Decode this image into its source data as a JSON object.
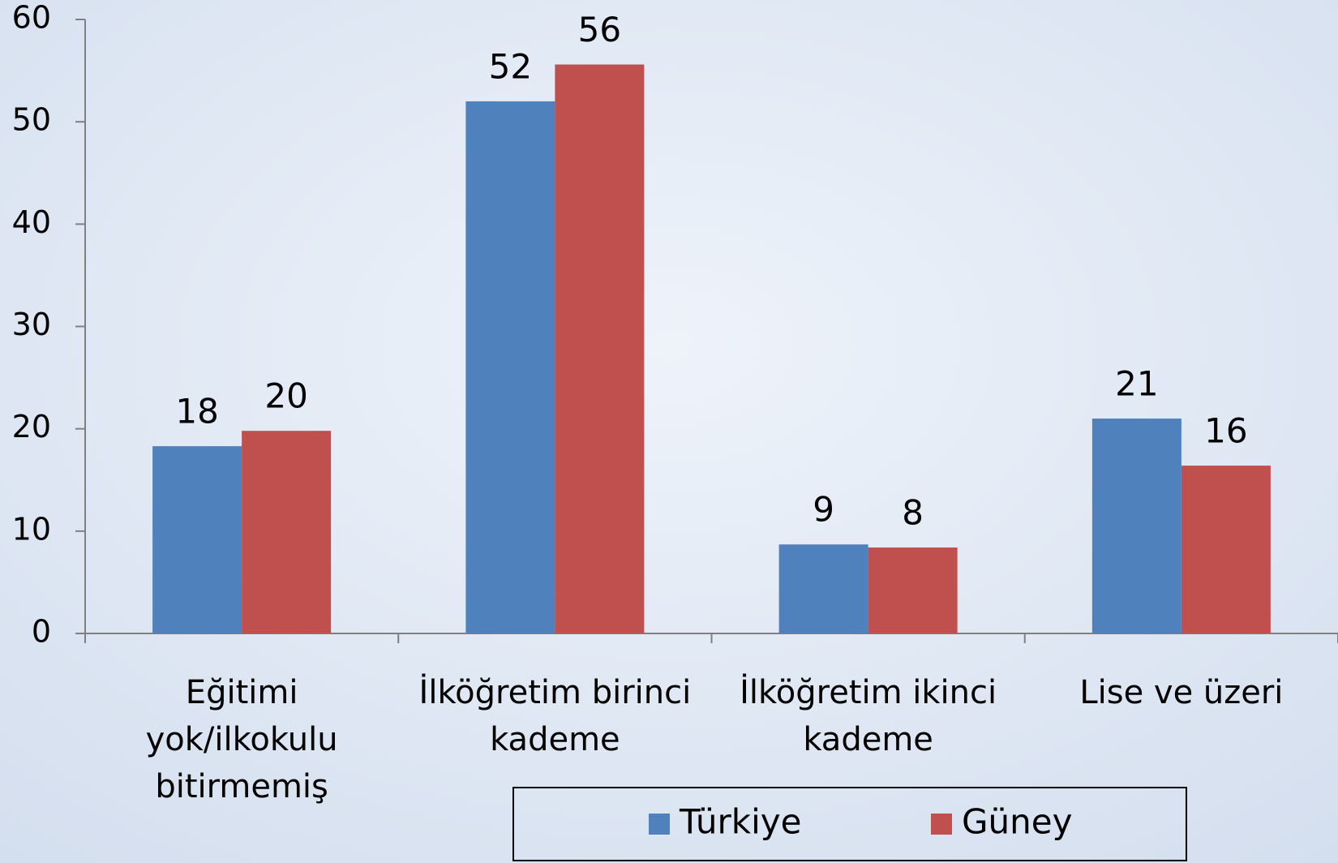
{
  "chart_data": {
    "type": "bar",
    "categories": [
      "Eğitimi\nyok/ilkokulu\nbitirmemiş",
      "İlköğretim birinci\nkademe",
      "İlköğretim ikinci\nkademe",
      "Lise ve üzeri"
    ],
    "series": [
      {
        "name": "Türkiye",
        "color": "#4f81bd",
        "values": [
          18.3,
          52,
          8.7,
          21
        ],
        "value_labels": [
          "18",
          "52",
          "9",
          "21"
        ]
      },
      {
        "name": "Güney",
        "color": "#c0504d",
        "values": [
          19.8,
          55.6,
          8.4,
          16.4
        ],
        "value_labels": [
          "20",
          "56",
          "8",
          "16"
        ]
      }
    ],
    "ylim": [
      0,
      60
    ],
    "yticks": [
      0,
      10,
      20,
      30,
      40,
      50,
      60
    ],
    "legend": "bottom"
  }
}
